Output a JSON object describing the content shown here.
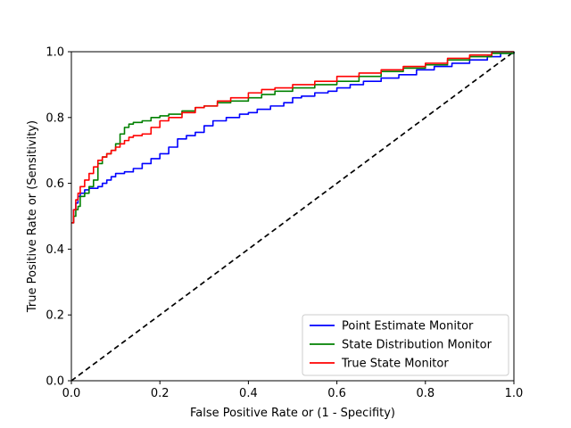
{
  "chart_data": {
    "type": "line",
    "title": "",
    "xlabel": "False Positive Rate or (1 - Specifity)",
    "ylabel": "True Positive Rate or (Sensitivity)",
    "xlim": [
      0,
      1
    ],
    "ylim": [
      0,
      1
    ],
    "xticks": [
      "0.0",
      "0.2",
      "0.4",
      "0.6",
      "0.8",
      "1.0"
    ],
    "yticks": [
      "0.0",
      "0.2",
      "0.4",
      "0.6",
      "0.8",
      "1.0"
    ],
    "grid": false,
    "legend_position": "lower-right",
    "reference_line": {
      "x": [
        0,
        1
      ],
      "y": [
        0,
        1
      ],
      "color": "#000000",
      "style": "dashed"
    },
    "series": [
      {
        "name": "Point Estimate Monitor",
        "color": "#0000ff",
        "x": [
          0,
          0.005,
          0.01,
          0.015,
          0.02,
          0.03,
          0.04,
          0.05,
          0.06,
          0.07,
          0.08,
          0.09,
          0.1,
          0.12,
          0.14,
          0.16,
          0.18,
          0.2,
          0.22,
          0.24,
          0.26,
          0.28,
          0.3,
          0.32,
          0.35,
          0.38,
          0.4,
          0.42,
          0.45,
          0.48,
          0.5,
          0.52,
          0.55,
          0.58,
          0.6,
          0.63,
          0.66,
          0.7,
          0.74,
          0.78,
          0.82,
          0.86,
          0.9,
          0.94,
          0.97,
          1.0
        ],
        "y": [
          0.48,
          0.52,
          0.54,
          0.56,
          0.57,
          0.58,
          0.585,
          0.585,
          0.59,
          0.6,
          0.61,
          0.62,
          0.63,
          0.635,
          0.645,
          0.66,
          0.675,
          0.69,
          0.71,
          0.735,
          0.745,
          0.755,
          0.775,
          0.79,
          0.8,
          0.81,
          0.815,
          0.825,
          0.835,
          0.845,
          0.86,
          0.865,
          0.875,
          0.88,
          0.89,
          0.9,
          0.91,
          0.92,
          0.93,
          0.945,
          0.955,
          0.965,
          0.975,
          0.985,
          0.995,
          1.0
        ]
      },
      {
        "name": "State Distribution Monitor",
        "color": "#008000",
        "x": [
          0,
          0.005,
          0.01,
          0.015,
          0.02,
          0.03,
          0.04,
          0.05,
          0.06,
          0.07,
          0.08,
          0.09,
          0.1,
          0.11,
          0.12,
          0.13,
          0.14,
          0.16,
          0.18,
          0.2,
          0.22,
          0.25,
          0.28,
          0.3,
          0.33,
          0.36,
          0.4,
          0.43,
          0.46,
          0.5,
          0.55,
          0.6,
          0.65,
          0.7,
          0.75,
          0.8,
          0.85,
          0.9,
          0.95,
          1.0
        ],
        "y": [
          0.48,
          0.5,
          0.52,
          0.53,
          0.56,
          0.57,
          0.59,
          0.61,
          0.66,
          0.68,
          0.69,
          0.7,
          0.72,
          0.75,
          0.77,
          0.78,
          0.785,
          0.79,
          0.8,
          0.805,
          0.81,
          0.82,
          0.83,
          0.835,
          0.845,
          0.85,
          0.86,
          0.87,
          0.88,
          0.89,
          0.9,
          0.91,
          0.925,
          0.94,
          0.95,
          0.96,
          0.975,
          0.985,
          0.995,
          1.0
        ]
      },
      {
        "name": "True State Monitor",
        "color": "#ff0000",
        "x": [
          0,
          0.005,
          0.01,
          0.015,
          0.02,
          0.03,
          0.04,
          0.05,
          0.06,
          0.07,
          0.08,
          0.09,
          0.1,
          0.11,
          0.12,
          0.13,
          0.14,
          0.16,
          0.18,
          0.2,
          0.22,
          0.25,
          0.28,
          0.3,
          0.33,
          0.36,
          0.4,
          0.43,
          0.46,
          0.5,
          0.55,
          0.6,
          0.65,
          0.7,
          0.75,
          0.8,
          0.85,
          0.9,
          0.95,
          1.0
        ],
        "y": [
          0.48,
          0.52,
          0.55,
          0.57,
          0.59,
          0.61,
          0.63,
          0.65,
          0.67,
          0.68,
          0.69,
          0.7,
          0.71,
          0.72,
          0.73,
          0.74,
          0.745,
          0.75,
          0.77,
          0.79,
          0.8,
          0.815,
          0.83,
          0.835,
          0.85,
          0.86,
          0.875,
          0.885,
          0.89,
          0.9,
          0.91,
          0.925,
          0.935,
          0.945,
          0.955,
          0.965,
          0.98,
          0.99,
          1.0,
          1.0
        ]
      }
    ]
  }
}
